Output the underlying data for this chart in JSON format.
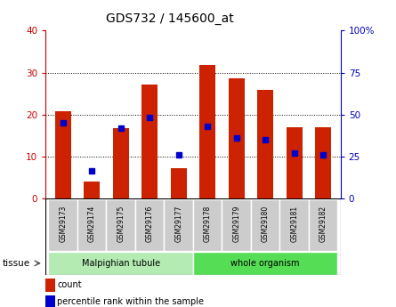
{
  "title": "GDS732 / 145600_at",
  "samples": [
    "GSM29173",
    "GSM29174",
    "GSM29175",
    "GSM29176",
    "GSM29177",
    "GSM29178",
    "GSM29179",
    "GSM29180",
    "GSM29181",
    "GSM29182"
  ],
  "counts": [
    20.8,
    4.0,
    16.7,
    27.2,
    7.2,
    31.8,
    28.6,
    25.8,
    17.0,
    17.0
  ],
  "percentiles": [
    45,
    16,
    42,
    48,
    26,
    43,
    36,
    35,
    27,
    26
  ],
  "groups": [
    {
      "label": "Malpighian tubule",
      "start": 0,
      "end": 5,
      "color": "#b3ebb3"
    },
    {
      "label": "whole organism",
      "start": 5,
      "end": 10,
      "color": "#55dd55"
    }
  ],
  "bar_color": "#cc2200",
  "dot_color": "#0000cc",
  "left_ylim": [
    0,
    40
  ],
  "right_ylim": [
    0,
    100
  ],
  "left_yticks": [
    0,
    10,
    20,
    30,
    40
  ],
  "right_yticks": [
    0,
    25,
    50,
    75,
    100
  ],
  "right_yticklabels": [
    "0",
    "25",
    "50",
    "75",
    "100%"
  ],
  "left_ylabel_color": "#cc0000",
  "right_ylabel_color": "#0000bb",
  "plot_bg": "#ffffff",
  "tick_label_bg": "#cccccc",
  "bar_width": 0.55,
  "legend_count": "count",
  "legend_pct": "percentile rank within the sample"
}
